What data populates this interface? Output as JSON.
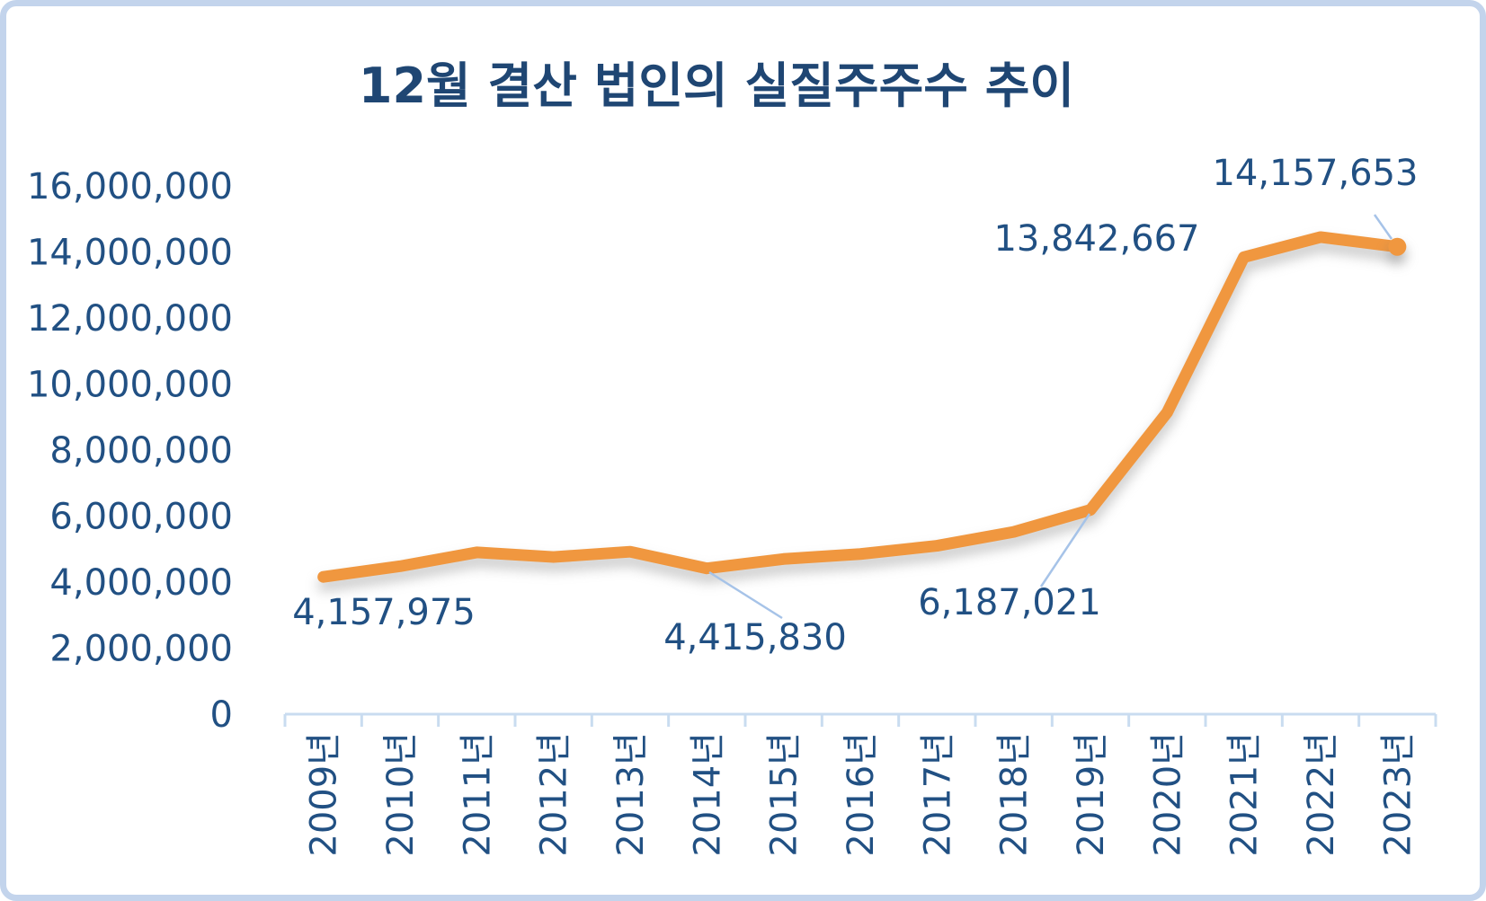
{
  "chart_data": {
    "type": "line",
    "title": "12월 결산 법인의 실질주주수 추이",
    "categories": [
      "2009년",
      "2010년",
      "2011년",
      "2012년",
      "2013년",
      "2014년",
      "2015년",
      "2016년",
      "2017년",
      "2018년",
      "2019년",
      "2020년",
      "2021년",
      "2022년",
      "2023년"
    ],
    "values": [
      4157975,
      4480000,
      4900000,
      4760000,
      4920000,
      4415830,
      4700000,
      4850000,
      5100000,
      5520000,
      6187021,
      9140000,
      13842667,
      14450000,
      14157653
    ],
    "ylim": [
      0,
      16000000
    ],
    "y_ticks": [
      {
        "value": 0,
        "label": "0"
      },
      {
        "value": 2000000,
        "label": "2,000,000"
      },
      {
        "value": 4000000,
        "label": "4,000,000"
      },
      {
        "value": 6000000,
        "label": "6,000,000"
      },
      {
        "value": 8000000,
        "label": "8,000,000"
      },
      {
        "value": 10000000,
        "label": "10,000,000"
      },
      {
        "value": 12000000,
        "label": "12,000,000"
      },
      {
        "value": 14000000,
        "label": "14,000,000"
      },
      {
        "value": 16000000,
        "label": "16,000,000"
      }
    ],
    "point_labels": [
      {
        "index": 0,
        "category": "2009년",
        "text": "4,157,975"
      },
      {
        "index": 5,
        "category": "2014년",
        "text": "4,415,830"
      },
      {
        "index": 10,
        "category": "2019년",
        "text": "6,187,021"
      },
      {
        "index": 12,
        "category": "2021년",
        "text": "13,842,667"
      },
      {
        "index": 14,
        "category": "2023년",
        "text": "14,157,653"
      }
    ],
    "grid": false,
    "legend": false,
    "x_label_rotation": -90,
    "colors": {
      "line": "#F0973F",
      "text": "#215083",
      "title": "#1F4673",
      "axis": "#C9DCF0",
      "leader": "#A6C3E8",
      "border": "#C3D4EC",
      "background": "#FFFFFF"
    }
  }
}
